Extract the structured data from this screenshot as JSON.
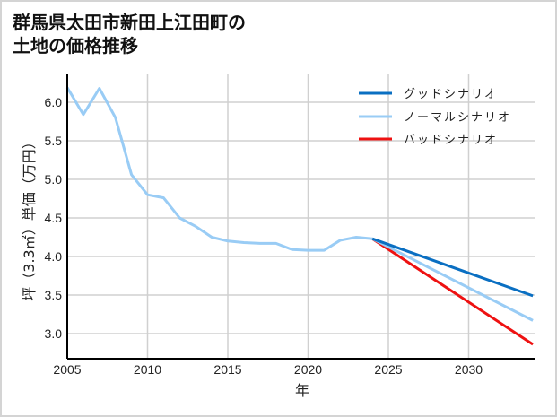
{
  "title_line1": "群馬県太田市新田上江田町の",
  "title_line2": "土地の価格推移",
  "chart_data": {
    "type": "line",
    "title": "群馬県太田市新田上江田町の土地の価格推移",
    "xlabel": "年",
    "ylabel": "坪（3.3㎡）単価（万円）",
    "xlim": [
      2005,
      2034
    ],
    "ylim": [
      2.7,
      6.3
    ],
    "xticks": [
      2005,
      2010,
      2015,
      2020,
      2025,
      2030
    ],
    "yticks": [
      3.0,
      3.5,
      4.0,
      4.5,
      5.0,
      5.5,
      6.0
    ],
    "grid": true,
    "legend_position": "upper right",
    "history": {
      "x": [
        2005,
        2006,
        2007,
        2008,
        2009,
        2010,
        2011,
        2012,
        2013,
        2014,
        2015,
        2016,
        2017,
        2018,
        2019,
        2020,
        2021,
        2022,
        2023,
        2024
      ],
      "values": [
        6.19,
        5.84,
        6.18,
        5.8,
        5.06,
        4.8,
        4.76,
        4.5,
        4.39,
        4.25,
        4.2,
        4.18,
        4.17,
        4.17,
        4.09,
        4.08,
        4.08,
        4.21,
        4.25,
        4.23
      ]
    },
    "series": [
      {
        "name": "グッドシナリオ",
        "color": "#0a6fc2",
        "x": [
          2024,
          2034
        ],
        "values": [
          4.23,
          3.49
        ]
      },
      {
        "name": "ノーマルシナリオ",
        "color": "#99ccf5",
        "x": [
          2024,
          2034
        ],
        "values": [
          4.23,
          3.17
        ]
      },
      {
        "name": "バッドシナリオ",
        "color": "#ee1111",
        "x": [
          2024,
          2034
        ],
        "values": [
          4.23,
          2.86
        ]
      }
    ]
  }
}
